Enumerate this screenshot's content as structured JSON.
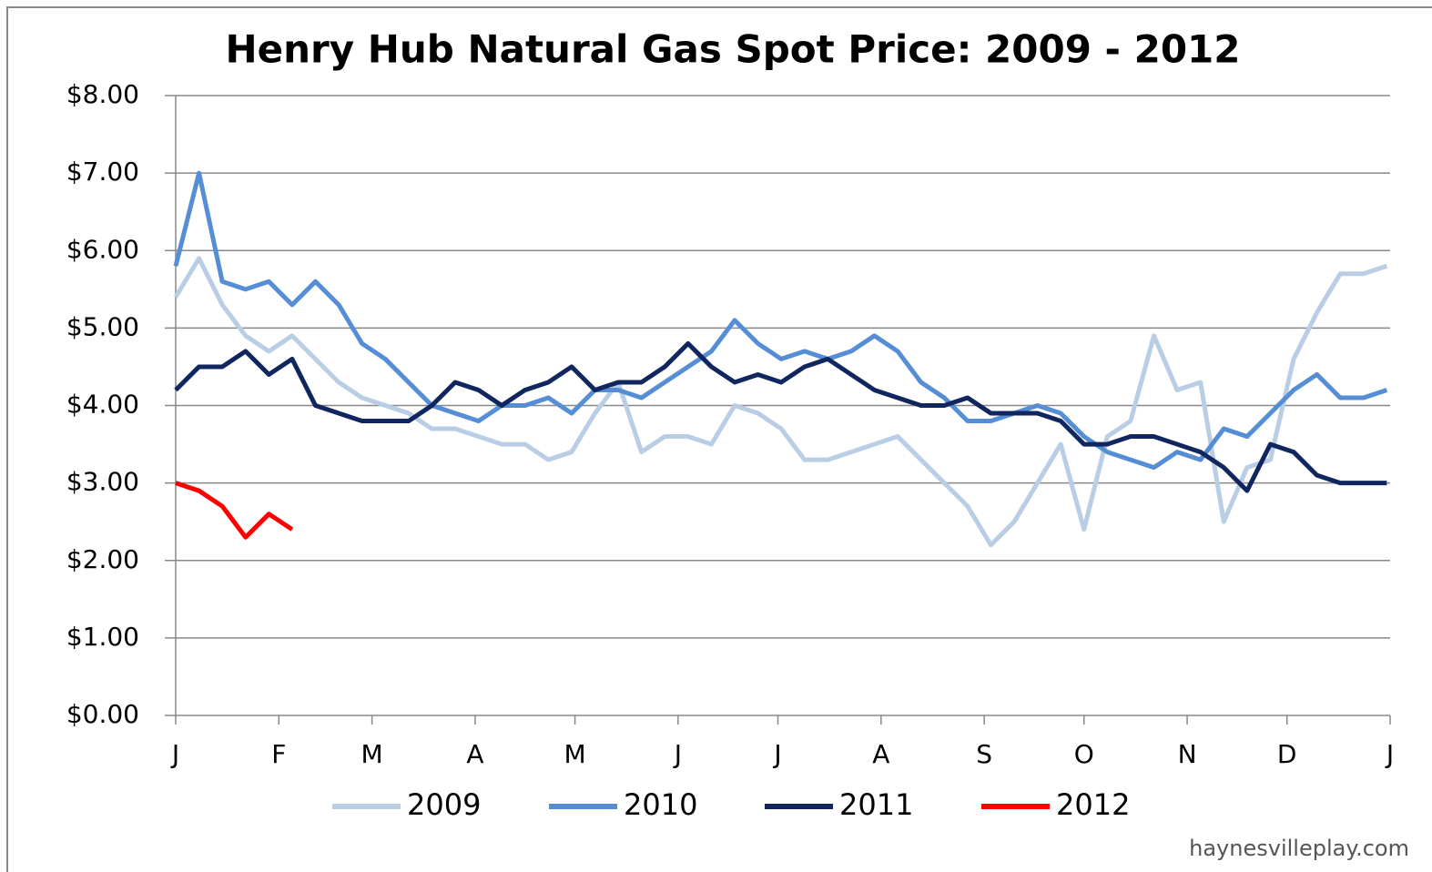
{
  "chart_data": {
    "type": "line",
    "title": "Henry Hub Natural Gas Spot Price: 2009 - 2012",
    "source": "haynesvilleplay.com",
    "x": [
      0,
      7,
      14,
      21,
      28,
      35,
      42,
      49,
      56,
      63,
      70,
      77,
      84,
      91,
      98,
      105,
      112,
      119,
      126,
      133,
      140,
      147,
      154,
      161,
      168,
      175,
      182,
      189,
      196,
      203,
      210,
      217,
      224,
      231,
      238,
      245,
      252,
      259,
      266,
      273,
      280,
      287,
      294,
      301,
      308,
      315,
      322,
      329,
      336,
      343,
      350,
      357,
      364
    ],
    "xlim": [
      0,
      365
    ],
    "xticks": [
      {
        "value": 0,
        "label": "J"
      },
      {
        "value": 31,
        "label": "F"
      },
      {
        "value": 59,
        "label": "M"
      },
      {
        "value": 90,
        "label": "A"
      },
      {
        "value": 120,
        "label": "M"
      },
      {
        "value": 151,
        "label": "J"
      },
      {
        "value": 181,
        "label": "J"
      },
      {
        "value": 212,
        "label": "A"
      },
      {
        "value": 243,
        "label": "S"
      },
      {
        "value": 273,
        "label": "O"
      },
      {
        "value": 304,
        "label": "N"
      },
      {
        "value": 334,
        "label": "D"
      },
      {
        "value": 365,
        "label": "J"
      }
    ],
    "ylim": [
      0,
      8
    ],
    "yticks": [
      {
        "value": 0,
        "label": "$0.00"
      },
      {
        "value": 1,
        "label": "$1.00"
      },
      {
        "value": 2,
        "label": "$2.00"
      },
      {
        "value": 3,
        "label": "$3.00"
      },
      {
        "value": 4,
        "label": "$4.00"
      },
      {
        "value": 5,
        "label": "$5.00"
      },
      {
        "value": 6,
        "label": "$6.00"
      },
      {
        "value": 7,
        "label": "$7.00"
      },
      {
        "value": 8,
        "label": "$8.00"
      }
    ],
    "grid": true,
    "legend": "bottom",
    "series": [
      {
        "name": "2009",
        "color": "#b9cde5",
        "values": [
          5.4,
          5.9,
          5.3,
          4.9,
          4.7,
          4.9,
          4.6,
          4.3,
          4.1,
          4.0,
          3.9,
          3.7,
          3.7,
          3.6,
          3.5,
          3.5,
          3.3,
          3.4,
          3.9,
          4.3,
          3.4,
          3.6,
          3.6,
          3.5,
          4.0,
          3.9,
          3.7,
          3.3,
          3.3,
          3.4,
          3.5,
          3.6,
          3.3,
          3.0,
          2.7,
          2.2,
          2.5,
          3.0,
          3.5,
          2.4,
          3.6,
          3.8,
          4.9,
          4.2,
          4.3,
          2.5,
          3.2,
          3.3,
          4.6,
          5.2,
          5.7,
          5.7,
          5.8
        ]
      },
      {
        "name": "2010",
        "color": "#558ed5",
        "values": [
          5.8,
          7.0,
          5.6,
          5.5,
          5.6,
          5.3,
          5.6,
          5.3,
          4.8,
          4.6,
          4.3,
          4.0,
          3.9,
          3.8,
          4.0,
          4.0,
          4.1,
          3.9,
          4.2,
          4.2,
          4.1,
          4.3,
          4.5,
          4.7,
          5.1,
          4.8,
          4.6,
          4.7,
          4.6,
          4.7,
          4.9,
          4.7,
          4.3,
          4.1,
          3.8,
          3.8,
          3.9,
          4.0,
          3.9,
          3.6,
          3.4,
          3.3,
          3.2,
          3.4,
          3.3,
          3.7,
          3.6,
          3.9,
          4.2,
          4.4,
          4.1,
          4.1,
          4.2
        ]
      },
      {
        "name": "2011",
        "color": "#10265e",
        "values": [
          4.2,
          4.5,
          4.5,
          4.7,
          4.4,
          4.6,
          4.0,
          3.9,
          3.8,
          3.8,
          3.8,
          4.0,
          4.3,
          4.2,
          4.0,
          4.2,
          4.3,
          4.5,
          4.2,
          4.3,
          4.3,
          4.5,
          4.8,
          4.5,
          4.3,
          4.4,
          4.3,
          4.5,
          4.6,
          4.4,
          4.2,
          4.1,
          4.0,
          4.0,
          4.1,
          3.9,
          3.9,
          3.9,
          3.8,
          3.5,
          3.5,
          3.6,
          3.6,
          3.5,
          3.4,
          3.2,
          2.9,
          3.5,
          3.4,
          3.1,
          3.0,
          3.0,
          3.0
        ]
      },
      {
        "name": "2012",
        "color": "#ff0000",
        "values": [
          3.0,
          2.9,
          2.7,
          2.3,
          2.6,
          2.4,
          null,
          null,
          null,
          null,
          null,
          null,
          null,
          null,
          null,
          null,
          null,
          null,
          null,
          null,
          null,
          null,
          null,
          null,
          null,
          null,
          null,
          null,
          null,
          null,
          null,
          null,
          null,
          null,
          null,
          null,
          null,
          null,
          null,
          null,
          null,
          null,
          null,
          null,
          null,
          null,
          null,
          null,
          null,
          null,
          null,
          null,
          null
        ]
      }
    ]
  }
}
